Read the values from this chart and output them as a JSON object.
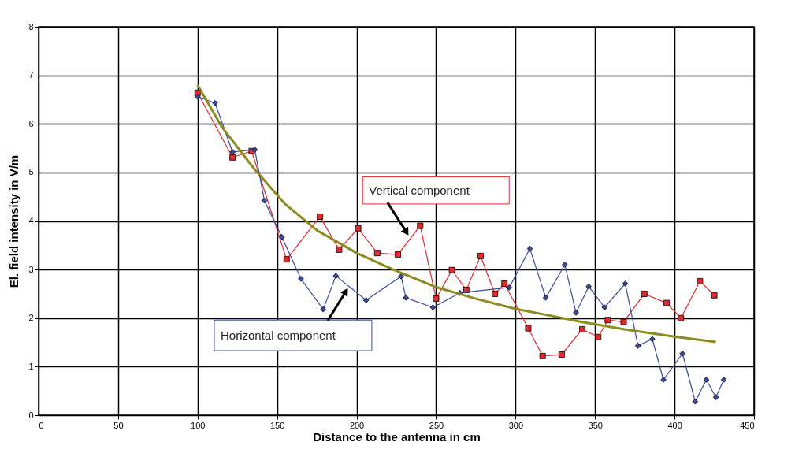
{
  "chart_data": {
    "type": "line",
    "xlabel": "Distance to the antenna in cm",
    "ylabel": "El. field intensity in V/m",
    "xlim": [
      0,
      450
    ],
    "xticks": [
      0,
      50,
      100,
      150,
      200,
      250,
      300,
      350,
      400,
      450
    ],
    "ylim": [
      0,
      8
    ],
    "yticks": [
      0,
      1,
      2,
      3,
      4,
      5,
      6,
      7,
      8
    ],
    "grid": true,
    "series": [
      {
        "name": "Vertical component",
        "color": "#e8262a",
        "marker": "square",
        "x": [
          100,
          122,
          134,
          156,
          177,
          189,
          201,
          213,
          226,
          240,
          250,
          260,
          269,
          278,
          287,
          293,
          308,
          317,
          329,
          342,
          352,
          358,
          368,
          381,
          395,
          404,
          416,
          425
        ],
        "values": [
          6.64,
          5.31,
          5.44,
          3.21,
          4.09,
          3.41,
          3.85,
          3.34,
          3.31,
          3.9,
          2.4,
          2.99,
          2.58,
          3.28,
          2.5,
          2.71,
          1.79,
          1.22,
          1.25,
          1.77,
          1.61,
          1.96,
          1.92,
          2.5,
          2.31,
          2.0,
          2.76,
          2.47
        ]
      },
      {
        "name": "Horizontal component",
        "color": "#3a4a9e",
        "marker": "diamond",
        "x": [
          100,
          111,
          122,
          136,
          142,
          153,
          165,
          179,
          187,
          206,
          228,
          231,
          248,
          265,
          296,
          309,
          319,
          331,
          338,
          346,
          356,
          369,
          377,
          386,
          393,
          405,
          413,
          420,
          426,
          431
        ],
        "values": [
          6.56,
          6.43,
          5.42,
          5.47,
          4.42,
          3.67,
          2.81,
          2.18,
          2.87,
          2.37,
          2.86,
          2.42,
          2.22,
          2.52,
          2.63,
          3.43,
          2.42,
          3.1,
          2.11,
          2.65,
          2.22,
          2.71,
          1.43,
          1.57,
          0.73,
          1.27,
          0.28,
          0.73,
          0.37,
          0.73
        ]
      },
      {
        "color": "#8b8b1e",
        "marker": "none",
        "x": [
          100,
          115,
          135,
          155,
          175,
          200,
          223,
          249,
          275,
          300,
          325,
          342,
          370,
          400,
          426
        ],
        "values": [
          6.8,
          5.95,
          5.1,
          4.35,
          3.81,
          3.34,
          3.0,
          2.65,
          2.4,
          2.19,
          2.03,
          1.92,
          1.76,
          1.62,
          1.51
        ]
      }
    ]
  }
}
